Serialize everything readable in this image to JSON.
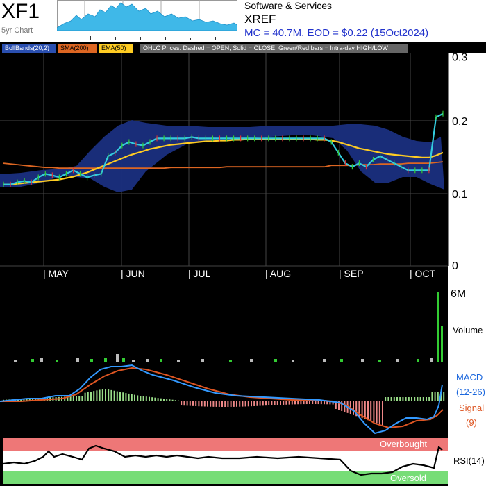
{
  "header": {
    "ticker": "XF1",
    "five_year_label": "5yr Chart",
    "sector": "Software & Services",
    "code": "XREF",
    "market_info": "MC = 40.7M, EOD = $0.22 (15Oct2024)"
  },
  "legend": {
    "bollinger": "BollBands(20,2)",
    "sma": "SMA(200)",
    "ema": "EMA(50)",
    "ohlc_note": "OHLC Prices: Dashed = OPEN, Solid = CLOSE, Green/Red bars = Intra-day HIGH/LOW"
  },
  "colors": {
    "background": "#000000",
    "close_line": "#33ccdd",
    "sma": "#dd6622",
    "ema": "#ffcc22",
    "bollinger_band": "#1a2f80",
    "macd_line": "#3399ff",
    "signal_line": "#dd5522",
    "overbought": "#ee7777",
    "oversold": "#77dd77",
    "volume_up": "#33cc33",
    "volume_down": "#bbbbbb"
  },
  "panels": {
    "volume_label": "Volume",
    "volume_max_label": "6M",
    "macd_label_1": "MACD",
    "macd_label_2": "(12-26)",
    "signal_label_1": "Signal",
    "signal_label_2": "(9)",
    "overbought_label": "Overbought",
    "oversold_label": "Oversold",
    "rsi_label": "RSI(14)"
  },
  "chart_data": {
    "type": "line",
    "title": "XF1",
    "x_axis_months": [
      "MAY",
      "JUN",
      "JUL",
      "AUG",
      "SEP",
      "OCT"
    ],
    "y_ticks": [
      "0.3",
      "0.2",
      "0.1",
      "0"
    ],
    "ylim": [
      0,
      0.3
    ],
    "grid": true,
    "legend_position": "top",
    "series": [
      {
        "name": "CLOSE",
        "values": [
          0.115,
          0.115,
          0.118,
          0.12,
          0.118,
          0.125,
          0.13,
          0.128,
          0.125,
          0.13,
          0.135,
          0.13,
          0.125,
          0.128,
          0.13,
          0.155,
          0.16,
          0.17,
          0.175,
          0.172,
          0.17,
          0.175,
          0.18,
          0.18,
          0.18,
          0.18,
          0.18,
          0.182,
          0.18,
          0.18,
          0.18,
          0.18,
          0.18,
          0.18,
          0.18,
          0.18,
          0.18,
          0.18,
          0.18,
          0.18,
          0.18,
          0.18,
          0.18,
          0.18,
          0.18,
          0.18,
          0.18,
          0.175,
          0.16,
          0.145,
          0.14,
          0.145,
          0.14,
          0.15,
          0.155,
          0.15,
          0.145,
          0.14,
          0.135,
          0.135,
          0.135,
          0.135,
          0.21,
          0.215
        ]
      },
      {
        "name": "SMA(200)",
        "values": [
          0.145,
          0.144,
          0.143,
          0.142,
          0.141,
          0.14,
          0.139,
          0.139,
          0.138,
          0.138,
          0.138,
          0.138,
          0.138,
          0.138,
          0.138,
          0.138,
          0.138,
          0.138,
          0.138,
          0.138,
          0.138,
          0.138,
          0.138,
          0.138,
          0.139,
          0.139,
          0.139,
          0.139,
          0.139,
          0.139,
          0.139,
          0.139,
          0.14,
          0.14,
          0.14,
          0.14,
          0.14,
          0.14,
          0.14,
          0.14,
          0.14,
          0.14,
          0.14,
          0.14,
          0.14,
          0.14,
          0.14,
          0.142,
          0.142,
          0.142,
          0.142,
          0.143,
          0.143,
          0.143,
          0.144,
          0.144,
          0.144,
          0.144,
          0.145,
          0.145,
          0.145,
          0.145,
          0.146,
          0.147
        ]
      },
      {
        "name": "EMA(50)",
        "values": [
          0.115,
          0.115,
          0.116,
          0.117,
          0.118,
          0.119,
          0.12,
          0.121,
          0.122,
          0.124,
          0.126,
          0.129,
          0.132,
          0.136,
          0.14,
          0.144,
          0.148,
          0.152,
          0.156,
          0.159,
          0.162,
          0.165,
          0.167,
          0.169,
          0.171,
          0.172,
          0.173,
          0.174,
          0.175,
          0.176,
          0.176,
          0.177,
          0.177,
          0.178,
          0.178,
          0.179,
          0.179,
          0.179,
          0.179,
          0.179,
          0.179,
          0.179,
          0.179,
          0.179,
          0.179,
          0.178,
          0.178,
          0.177,
          0.175,
          0.172,
          0.169,
          0.166,
          0.164,
          0.162,
          0.16,
          0.158,
          0.157,
          0.156,
          0.155,
          0.154,
          0.153,
          0.153,
          0.156,
          0.16
        ]
      }
    ]
  }
}
